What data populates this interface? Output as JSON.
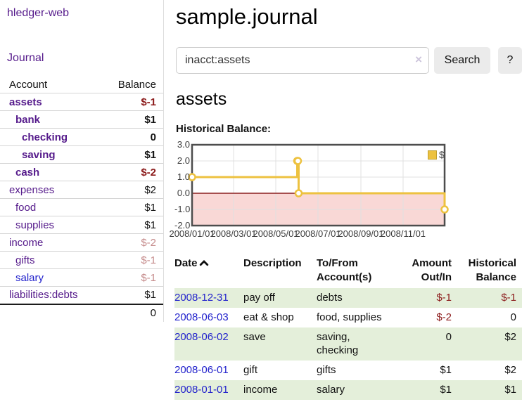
{
  "sidebar": {
    "brand": "hledger-web",
    "journal_link": "Journal",
    "accounts": {
      "col_account": "Account",
      "col_balance": "Balance",
      "rows": [
        {
          "name": "assets",
          "balance": "$-1",
          "depth": 1,
          "bold": true,
          "name_color": "purple",
          "balance_tone": "negative"
        },
        {
          "name": "bank",
          "balance": "$1",
          "depth": 2,
          "bold": true,
          "name_color": "purple",
          "balance_tone": "normal"
        },
        {
          "name": "checking",
          "balance": "0",
          "depth": 3,
          "bold": true,
          "name_color": "purple",
          "balance_tone": "normal"
        },
        {
          "name": "saving",
          "balance": "$1",
          "depth": 3,
          "bold": true,
          "name_color": "purple",
          "balance_tone": "normal"
        },
        {
          "name": "cash",
          "balance": "$-2",
          "depth": 2,
          "bold": true,
          "name_color": "purple",
          "balance_tone": "negative"
        },
        {
          "name": "expenses",
          "balance": "$2",
          "depth": 1,
          "bold": false,
          "name_color": "purple",
          "balance_tone": "normal"
        },
        {
          "name": "food",
          "balance": "$1",
          "depth": 2,
          "bold": false,
          "name_color": "purple",
          "balance_tone": "normal"
        },
        {
          "name": "supplies",
          "balance": "$1",
          "depth": 2,
          "bold": false,
          "name_color": "purple",
          "balance_tone": "normal"
        },
        {
          "name": "income",
          "balance": "$-2",
          "depth": 1,
          "bold": false,
          "name_color": "purple",
          "balance_tone": "negative-muted"
        },
        {
          "name": "gifts",
          "balance": "$-1",
          "depth": 2,
          "bold": false,
          "name_color": "purple",
          "balance_tone": "negative-muted"
        },
        {
          "name": "salary",
          "balance": "$-1",
          "depth": 2,
          "bold": false,
          "name_color": "blue",
          "balance_tone": "negative-muted"
        },
        {
          "name": "liabilities:debts",
          "balance": "$1",
          "depth": 1,
          "bold": false,
          "name_color": "purple",
          "balance_tone": "normal"
        }
      ],
      "total": "0"
    }
  },
  "main": {
    "title": "sample.journal",
    "search": {
      "value": "inacct:assets",
      "clear_icon": "×",
      "button": "Search",
      "help": "?"
    },
    "account_heading": "assets",
    "chart_title": "Historical Balance:"
  },
  "register": {
    "headers": {
      "date": "Date",
      "description": "Description",
      "accounts": "To/From Account(s)",
      "amount": "Amount Out/In",
      "balance": "Historical Balance"
    },
    "rows": [
      {
        "date": "2008-12-31",
        "description": "pay off",
        "accounts_lines": [
          "debts"
        ],
        "amount": "$-1",
        "amount_tone": "negative",
        "balance": "$-1",
        "balance_tone": "negative",
        "shaded": true
      },
      {
        "date": "2008-06-03",
        "description": "eat & shop",
        "accounts_lines": [
          "food, supplies"
        ],
        "amount": "$-2",
        "amount_tone": "negative",
        "balance": "0",
        "balance_tone": "normal",
        "shaded": false
      },
      {
        "date": "2008-06-02",
        "description": "save",
        "accounts_lines": [
          "saving,",
          "checking"
        ],
        "amount": "0",
        "amount_tone": "normal",
        "balance": "$2",
        "balance_tone": "normal",
        "shaded": true
      },
      {
        "date": "2008-06-01",
        "description": "gift",
        "accounts_lines": [
          "gifts"
        ],
        "amount": "$1",
        "amount_tone": "normal",
        "balance": "$2",
        "balance_tone": "normal",
        "shaded": false
      },
      {
        "date": "2008-01-01",
        "description": "income",
        "accounts_lines": [
          "salary"
        ],
        "amount": "$1",
        "amount_tone": "normal",
        "balance": "$1",
        "balance_tone": "normal",
        "shaded": true
      }
    ]
  },
  "chart_data": {
    "type": "line",
    "title": "Historical Balance:",
    "x_type": "date",
    "xlim": [
      "2008-01-01",
      "2008-12-31"
    ],
    "ylim": [
      -2,
      3
    ],
    "x_ticks": [
      {
        "date": "2008-01-01",
        "label": "2008/01/01"
      },
      {
        "date": "2008-03-01",
        "label": "2008/03/01"
      },
      {
        "date": "2008-05-01",
        "label": "2008/05/01"
      },
      {
        "date": "2008-07-01",
        "label": "2008/07/01"
      },
      {
        "date": "2008-09-01",
        "label": "2008/09/01"
      },
      {
        "date": "2008-11-01",
        "label": "2008/11/01"
      }
    ],
    "y_ticks": [
      {
        "value": 3,
        "label": "3.0"
      },
      {
        "value": 2,
        "label": "2.0"
      },
      {
        "value": 1,
        "label": "1.0"
      },
      {
        "value": 0,
        "label": "0.0"
      },
      {
        "value": -1,
        "label": "-1.0"
      },
      {
        "value": -2,
        "label": "-2.0"
      }
    ],
    "series": [
      {
        "name": "$",
        "color": "#edc240",
        "step": true,
        "points": [
          {
            "date": "2008-01-01",
            "value": 1
          },
          {
            "date": "2008-06-01",
            "value": 2
          },
          {
            "date": "2008-06-02",
            "value": 2
          },
          {
            "date": "2008-06-03",
            "value": 0
          },
          {
            "date": "2008-12-31",
            "value": -1
          }
        ]
      }
    ],
    "legend_position": "top-right",
    "grid": true,
    "negative_region_color": "#f9d8d6",
    "zero_line_color": "#8b1f1f",
    "grid_color": "#e0e0e0",
    "frame_color": "#4d4d4d"
  },
  "colors": {
    "link_purple": "#551a8b",
    "link_blue": "#2323cc",
    "negative_strong": "#8b1a1a",
    "negative_muted": "#c58b8b",
    "row_stripe_green": "#e4efda",
    "button_gray": "#ebebeb",
    "chart_series_gold": "#edc240"
  }
}
